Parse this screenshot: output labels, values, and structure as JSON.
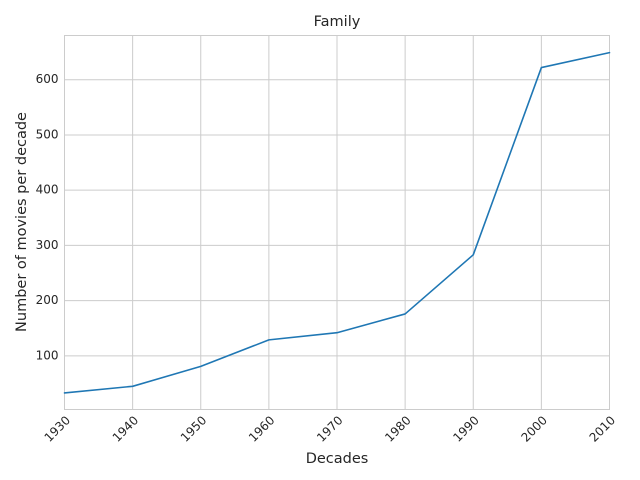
{
  "chart_data": {
    "type": "line",
    "title": "Family",
    "xlabel": "Decades",
    "ylabel": "Number of movies per decade",
    "x": [
      1930,
      1940,
      1950,
      1960,
      1970,
      1980,
      1990,
      2000,
      2010
    ],
    "series": [
      {
        "values": [
          33,
          45,
          81,
          129,
          142,
          176,
          283,
          622,
          649
        ],
        "color": "#1f77b4"
      }
    ],
    "xlim": [
      1930,
      2010
    ],
    "ylim": [
      3,
      680
    ],
    "x_ticks": [
      "1930",
      "1940",
      "1950",
      "1960",
      "1970",
      "1980",
      "1990",
      "2000",
      "2010"
    ],
    "y_ticks": [
      "100",
      "200",
      "300",
      "400",
      "500",
      "600"
    ],
    "grid": true,
    "x_tick_rotation_deg": 45
  }
}
